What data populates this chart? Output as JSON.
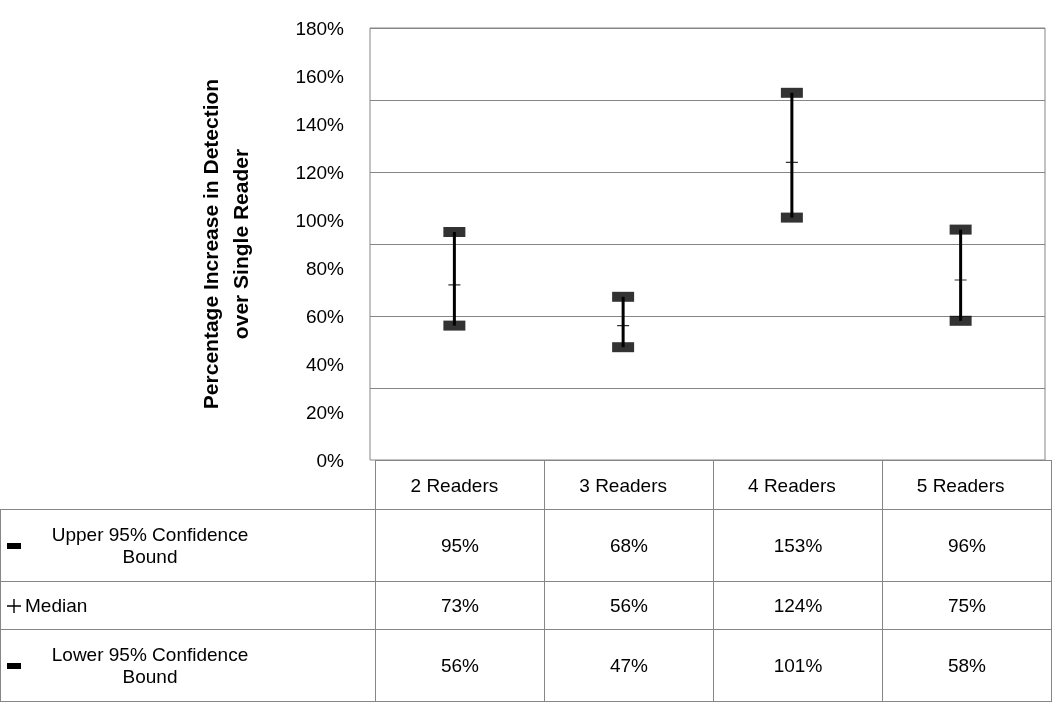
{
  "chart_data": {
    "type": "scatter",
    "ylabel": "Percentage Increase in Detection\nover Single Reader",
    "categories": [
      "2 Readers",
      "3 Readers",
      "4 Readers",
      "5 Readers"
    ],
    "series": [
      {
        "name": "Upper 95% Confidence Bound",
        "color": "#000000",
        "values": [
          95,
          68,
          153,
          96
        ],
        "value_labels": [
          "95%",
          "68%",
          "153%",
          "96%"
        ]
      },
      {
        "name": "Median",
        "color": "#000000",
        "marker": "cross",
        "values": [
          73,
          56,
          124,
          75
        ],
        "value_labels": [
          "73%",
          "56%",
          "124%",
          "75%"
        ]
      },
      {
        "name": "Lower 95% Confidence Bound",
        "color": "#000000",
        "values": [
          56,
          47,
          101,
          58
        ],
        "value_labels": [
          "56%",
          "47%",
          "101%",
          "58%"
        ]
      }
    ],
    "ylim": [
      0,
      180
    ],
    "yticks": [
      {
        "value": 0,
        "label": "0%"
      },
      {
        "value": 20,
        "label": "20%"
      },
      {
        "value": 40,
        "label": "40%"
      },
      {
        "value": 60,
        "label": "60%"
      },
      {
        "value": 80,
        "label": "80%"
      },
      {
        "value": 100,
        "label": "100%"
      },
      {
        "value": 120,
        "label": "120%"
      },
      {
        "value": 140,
        "label": "140%"
      },
      {
        "value": 160,
        "label": "160%"
      },
      {
        "value": 180,
        "label": "180%"
      }
    ],
    "grid": "y",
    "legend": "bottom"
  }
}
